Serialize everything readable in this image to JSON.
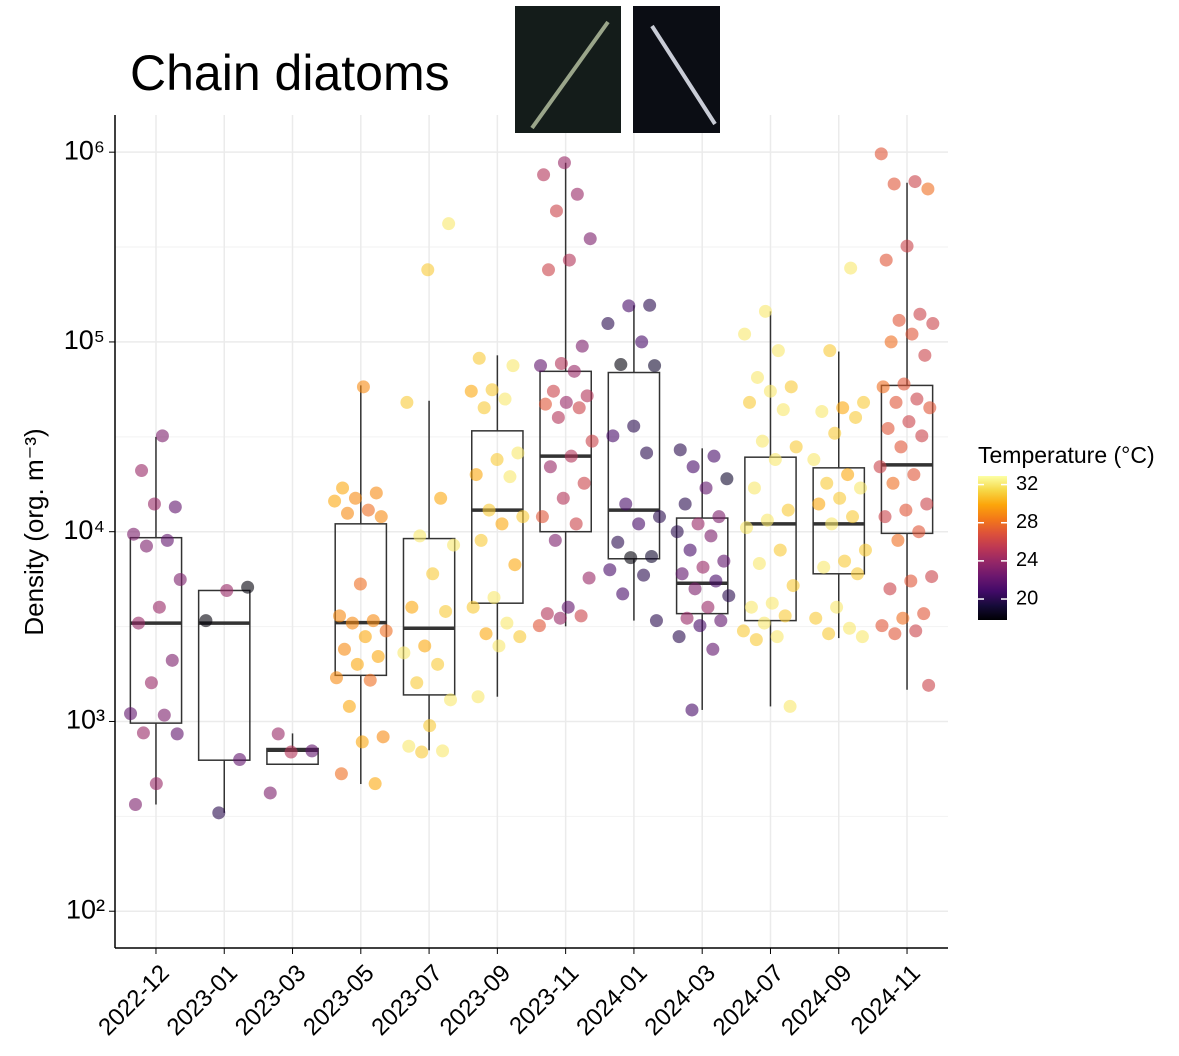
{
  "chart_data": {
    "type": "box",
    "title": "Chain diatoms",
    "ylabel": "Density (org. m⁻³)",
    "categories": [
      "2022-12",
      "2023-01",
      "2023-03",
      "2023-05",
      "2023-07",
      "2023-09",
      "2023-11",
      "2024-01",
      "2024-03",
      "2024-07",
      "2024-09",
      "2024-11"
    ],
    "log_y": true,
    "grid": true,
    "ylim": [
      64,
      1570000
    ],
    "yticks": [
      {
        "value": 100,
        "label": "10²"
      },
      {
        "value": 1000,
        "label": "10³"
      },
      {
        "value": 10000,
        "label": "10⁴"
      },
      {
        "value": 100000,
        "label": "10⁵"
      },
      {
        "value": 1000000,
        "label": "10⁶"
      }
    ],
    "yminor": [
      316.23,
      3162.3,
      31623,
      316228
    ],
    "box_color": "#333333",
    "boxes": [
      {
        "low": 365,
        "q1": 980,
        "median": 3300,
        "q3": 9300,
        "high": 31600
      },
      {
        "low": 330,
        "q1": 625,
        "median": 3300,
        "q3": 4900,
        "high": 4900
      },
      {
        "low": 595,
        "q1": 595,
        "median": 705,
        "q3": 720,
        "high": 865
      },
      {
        "low": 468,
        "q1": 1750,
        "median": 3320,
        "q3": 11000,
        "high": 59000
      },
      {
        "low": 705,
        "q1": 1380,
        "median": 3100,
        "q3": 9200,
        "high": 49000
      },
      {
        "low": 1350,
        "q1": 4200,
        "median": 13000,
        "q3": 34000,
        "high": 85000
      },
      {
        "low": 3170,
        "q1": 10000,
        "median": 25000,
        "q3": 70000,
        "high": 880000
      },
      {
        "low": 3400,
        "q1": 7200,
        "median": 13000,
        "q3": 69000,
        "high": 156000
      },
      {
        "low": 1150,
        "q1": 3700,
        "median": 5350,
        "q3": 11800,
        "high": 27500
      },
      {
        "low": 1200,
        "q1": 3400,
        "median": 11000,
        "q3": 24700,
        "high": 145000
      },
      {
        "low": 2750,
        "q1": 6000,
        "median": 11000,
        "q3": 21700,
        "high": 89000
      },
      {
        "low": 1470,
        "q1": 9800,
        "median": 22500,
        "q3": 59000,
        "high": 690000
      }
    ],
    "points": [
      {
        "values": [
          32000,
          21000,
          13500,
          14000,
          9700,
          9000,
          8400,
          5600,
          4000,
          3300,
          2100,
          1600,
          1100,
          1080,
          870,
          860,
          470,
          365
        ],
        "temps": [
          23,
          24,
          22,
          24,
          23,
          22,
          23,
          23,
          24,
          24,
          23,
          24,
          22,
          23,
          24,
          22,
          24,
          23
        ]
      },
      {
        "values": [
          5100,
          4900,
          3400,
          630,
          330
        ],
        "temps": [
          18,
          24,
          18,
          22,
          20
        ]
      },
      {
        "values": [
          860,
          700,
          690,
          420
        ],
        "temps": [
          24,
          22,
          25,
          23
        ]
      },
      {
        "values": [
          58000,
          17000,
          16000,
          15000,
          14500,
          13000,
          12500,
          12000,
          5300,
          3600,
          3400,
          3300,
          3000,
          2800,
          2400,
          2200,
          2000,
          1700,
          1650,
          1200,
          830,
          780,
          530,
          470
        ],
        "temps": [
          29,
          30,
          29,
          29,
          30,
          28,
          29,
          29,
          28,
          29,
          29,
          29,
          28,
          30,
          29,
          30,
          30,
          29,
          28,
          30,
          29,
          30,
          28,
          30
        ]
      },
      {
        "values": [
          420000,
          240000,
          48000,
          15000,
          9500,
          8500,
          6000,
          4000,
          3800,
          2500,
          2300,
          2000,
          1600,
          1300,
          950,
          740,
          700,
          690
        ],
        "temps": [
          32,
          31,
          31,
          30,
          32,
          32,
          31,
          30,
          31,
          30,
          32,
          31,
          31,
          32,
          31,
          32,
          32,
          31
        ]
      },
      {
        "values": [
          82000,
          75000,
          56000,
          55000,
          50000,
          45000,
          26000,
          24000,
          20000,
          19500,
          13000,
          12000,
          11000,
          9000,
          6700,
          4500,
          4000,
          3300,
          2900,
          2800,
          2500,
          1350
        ],
        "temps": [
          31,
          32,
          31,
          30,
          32,
          31,
          32,
          31,
          30,
          32,
          31,
          31,
          30,
          31,
          30,
          32,
          31,
          32,
          30,
          31,
          32,
          32
        ]
      },
      {
        "values": [
          880000,
          760000,
          600000,
          490000,
          350000,
          270000,
          240000,
          95000,
          77000,
          75000,
          70000,
          55000,
          52000,
          48000,
          47000,
          45000,
          40000,
          30000,
          25000,
          22000,
          18000,
          15000,
          12000,
          11000,
          9000,
          5700,
          4000,
          3700,
          3600,
          3500,
          3200
        ],
        "temps": [
          24,
          25,
          24,
          26,
          23,
          25,
          26,
          23,
          25,
          22,
          24,
          26,
          25,
          24,
          27,
          26,
          25,
          26,
          25,
          24,
          26,
          25,
          27,
          26,
          23,
          24,
          22,
          25,
          26,
          24,
          27
        ]
      },
      {
        "values": [
          156000,
          155000,
          125000,
          100000,
          76000,
          75000,
          36000,
          32000,
          26000,
          14000,
          12000,
          11000,
          8800,
          7400,
          7300,
          6300,
          5900,
          4700,
          3400
        ],
        "temps": [
          20,
          21,
          20,
          21,
          18,
          19,
          20,
          21,
          20,
          21,
          20,
          21,
          20,
          19,
          18,
          21,
          20,
          21,
          20
        ]
      },
      {
        "values": [
          27000,
          25000,
          22000,
          19000,
          17000,
          14000,
          12000,
          11000,
          10000,
          9500,
          8000,
          7000,
          6500,
          6000,
          5500,
          5000,
          4600,
          4000,
          3500,
          3400,
          3200,
          2800,
          2400,
          1150
        ],
        "temps": [
          20,
          21,
          21,
          19,
          22,
          20,
          23,
          24,
          20,
          23,
          21,
          22,
          24,
          22,
          21,
          23,
          20,
          24,
          24,
          22,
          21,
          20,
          22,
          21
        ]
      },
      {
        "values": [
          145000,
          110000,
          90000,
          65000,
          58000,
          55000,
          48000,
          44000,
          30000,
          28000,
          24000,
          17000,
          13000,
          11500,
          10500,
          8000,
          6800,
          5200,
          4200,
          4000,
          3600,
          3300,
          3000,
          2800,
          2700,
          1200
        ],
        "temps": [
          32,
          32,
          32,
          32,
          31,
          32,
          31,
          32,
          32,
          31,
          32,
          32,
          31,
          32,
          32,
          31,
          32,
          31,
          32,
          32,
          31,
          32,
          31,
          32,
          31,
          32
        ]
      },
      {
        "values": [
          245000,
          90000,
          48000,
          45000,
          43000,
          40000,
          33000,
          24000,
          20000,
          18000,
          17000,
          15000,
          14000,
          12000,
          11000,
          8000,
          7000,
          6500,
          6000,
          4000,
          3500,
          3100,
          2900,
          2800
        ],
        "temps": [
          32,
          31,
          31,
          30,
          32,
          31,
          31,
          32,
          30,
          31,
          32,
          31,
          30,
          31,
          32,
          31,
          31,
          32,
          31,
          32,
          31,
          32,
          31,
          32
        ]
      },
      {
        "values": [
          980000,
          700000,
          680000,
          640000,
          320000,
          270000,
          140000,
          130000,
          125000,
          110000,
          100000,
          85000,
          60000,
          58000,
          50000,
          48000,
          45000,
          38000,
          35000,
          32000,
          28000,
          22000,
          20000,
          18000,
          14000,
          13000,
          12000,
          10000,
          9000,
          5800,
          5500,
          5000,
          3700,
          3500,
          3200,
          3000,
          2900,
          1550
        ],
        "temps": [
          27,
          26,
          27,
          28,
          26,
          27,
          26,
          27,
          26,
          27,
          28,
          26,
          27,
          28,
          26,
          27,
          27,
          26,
          27,
          26,
          27,
          26,
          27,
          28,
          26,
          27,
          26,
          27,
          28,
          26,
          27,
          26,
          27,
          28,
          27,
          26,
          27,
          26
        ]
      }
    ],
    "colorbar": {
      "title": "Temperature (°C)",
      "colormap": "inferno",
      "limits": [
        17.8,
        32.9
      ],
      "ticks": [
        20,
        24,
        28,
        32
      ]
    },
    "legend_position": "right"
  }
}
